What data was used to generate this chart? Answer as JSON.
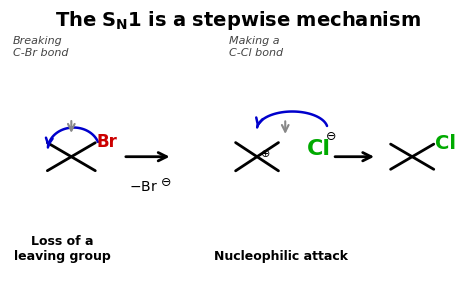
{
  "bg_color": "#ffffff",
  "figsize": [
    4.74,
    2.93
  ],
  "dpi": 100,
  "title": "The S",
  "title_sub": "N",
  "title_rest": "1 is a stepwise mechanism",
  "title_fontsize": 14,
  "ann1_text": "Breaking\nC-Br bond",
  "ann2_text": "Making a\nC-Cl bond",
  "label1_text": "Loss of a\nleaving group",
  "label2_text": "Nucleophilic attack",
  "br_color": "#cc0000",
  "cl_color": "#00aa00",
  "blue_color": "#0000cc",
  "gray_color": "#888888",
  "black": "#000000",
  "m1x": 0.145,
  "m1y": 0.465,
  "m2x": 0.54,
  "m2y": 0.465,
  "m3x": 0.87,
  "m3y": 0.465,
  "arm": 0.06
}
